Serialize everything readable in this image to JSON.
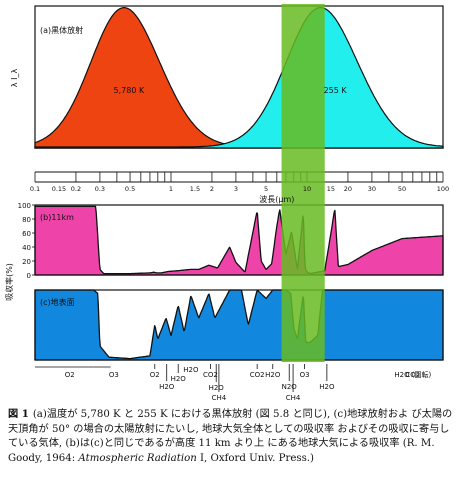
{
  "chart_data": [
    {
      "panel": "a",
      "type": "area",
      "title": "(a)黒体放射",
      "ylabel": "λ I_λ",
      "series": [
        {
          "name": "5,780 K",
          "label": "5,780 K",
          "color": "#ee4411",
          "peak_um": 0.5
        },
        {
          "name": "255 K",
          "label": "255 K",
          "color": "#22eeee",
          "peak_um": 14
        }
      ]
    },
    {
      "panel": "axis",
      "type": "line",
      "xlabel": "波長(μm)",
      "xscale": "log",
      "xlim": [
        0.1,
        100
      ],
      "ticks": [
        "0.1",
        "0.15",
        "0.2",
        "0.3",
        "0.5",
        "1",
        "1.5",
        "2",
        "3",
        "5",
        "10",
        "15",
        "20",
        "30",
        "50",
        "100"
      ],
      "window_um": [
        6.5,
        13.5
      ],
      "window_color": "#66bb22"
    },
    {
      "panel": "b",
      "type": "area",
      "title": "(b)11km",
      "ylabel": "吸収率(%)",
      "ylim": [
        0,
        100
      ],
      "yticks": [
        "100",
        "80",
        "60",
        "40",
        "20",
        "0"
      ],
      "color": "#ee44aa",
      "x": [
        0.1,
        0.28,
        0.3,
        0.32,
        0.5,
        0.7,
        0.75,
        0.78,
        0.85,
        0.95,
        1.1,
        1.4,
        1.6,
        1.9,
        2.2,
        2.7,
        3.0,
        3.5,
        4.3,
        4.6,
        5.0,
        5.5,
        6.0,
        6.3,
        6.7,
        7.0,
        7.7,
        8.5,
        9.4,
        9.6,
        9.8,
        10.5,
        13.5,
        15,
        16,
        17,
        20,
        30,
        50,
        100
      ],
      "y": [
        98,
        98,
        8,
        2,
        2,
        3,
        4,
        3,
        3,
        5,
        6,
        8,
        8,
        14,
        10,
        40,
        18,
        4,
        92,
        20,
        8,
        16,
        70,
        94,
        55,
        30,
        62,
        8,
        90,
        22,
        6,
        2,
        6,
        60,
        95,
        12,
        15,
        35,
        52,
        56
      ]
    },
    {
      "panel": "c",
      "type": "area",
      "title": "(c)地表面",
      "color": "#1188dd",
      "x": [
        0.1,
        0.27,
        0.29,
        0.3,
        0.35,
        0.5,
        0.7,
        0.76,
        0.8,
        0.92,
        1.0,
        1.13,
        1.25,
        1.4,
        1.6,
        1.9,
        2.1,
        2.7,
        3.3,
        3.7,
        4.3,
        5.0,
        5.6,
        6.3,
        7.0,
        7.6,
        8.0,
        8.5,
        9.4,
        9.6,
        9.8,
        10.5,
        12.0,
        13.0,
        15.0,
        100
      ],
      "y": [
        100,
        100,
        95,
        20,
        4,
        2,
        6,
        50,
        30,
        60,
        35,
        78,
        40,
        92,
        60,
        95,
        60,
        100,
        100,
        50,
        100,
        88,
        100,
        100,
        100,
        95,
        45,
        30,
        95,
        55,
        25,
        25,
        35,
        100,
        100,
        100
      ],
      "labels": [
        "O2",
        "O3",
        "O2",
        "H2O",
        "H2O",
        "H2O",
        "CO2",
        "H2O",
        "CH4",
        "CO2",
        "H2O",
        "N2O",
        "CH4",
        "O3",
        "H2O",
        "CO2",
        "H2O (回転)"
      ]
    }
  ],
  "caption": {
    "number": "図 1",
    "text_before_italic": "(a)温度が 5,780 K と 255 K における黒体放射 (図 5.8 と同じ), (c)地球放射およ び太陽の天頂角が 50° の場合の太陽放射にたいし, 地球大気全体としての吸収率 およびその吸収に寄与している気体, (b)は(c)と同じであるが高度 11 km より上 にある地球大気による吸収率 (R. M. Goody, 1964:",
    "italic": "Atmospheric Radiation",
    "text_after_italic": "I, Oxford Univ. Press.)"
  }
}
